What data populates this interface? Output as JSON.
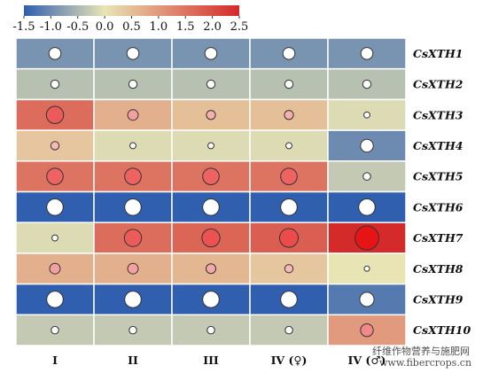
{
  "chart_data": {
    "type": "heatmap",
    "columns": [
      "I",
      "II",
      "III",
      "IV (♀)",
      "IV (♂)"
    ],
    "rows": [
      "CsXTH1",
      "CsXTH2",
      "CsXTH3",
      "CsXTH4",
      "CsXTH5",
      "CsXTH6",
      "CsXTH7",
      "CsXTH8",
      "CsXTH9",
      "CsXTH10"
    ],
    "values": [
      [
        -0.9,
        -0.9,
        -0.9,
        -0.9,
        -0.9
      ],
      [
        -0.4,
        -0.4,
        -0.4,
        -0.4,
        -0.4
      ],
      [
        1.6,
        0.7,
        0.5,
        0.5,
        -0.1
      ],
      [
        0.4,
        -0.1,
        -0.1,
        -0.1,
        -1.0
      ],
      [
        1.5,
        1.5,
        1.5,
        1.5,
        -0.3
      ],
      [
        -1.5,
        -1.5,
        -1.5,
        -1.5,
        -1.5
      ],
      [
        -0.1,
        1.6,
        1.7,
        1.8,
        2.5
      ],
      [
        0.7,
        0.7,
        0.6,
        0.4,
        0.0
      ],
      [
        -1.5,
        -1.5,
        -1.5,
        -1.5,
        -1.2
      ],
      [
        -0.3,
        -0.3,
        -0.3,
        -0.3,
        1.0
      ]
    ],
    "colorbar": {
      "min": -1.5,
      "max": 2.5,
      "ticks": [
        "-1.5",
        "-1.0",
        "-0.5",
        "0.0",
        "0.5",
        "1.0",
        "1.5",
        "2.0",
        "2.5"
      ],
      "colors": [
        "#2f5fae",
        "#e9e4b4",
        "#d42a2a"
      ]
    }
  },
  "watermark": {
    "text": "纤维作物营养与施肥网",
    "url": "www.fibercrops.cn"
  }
}
